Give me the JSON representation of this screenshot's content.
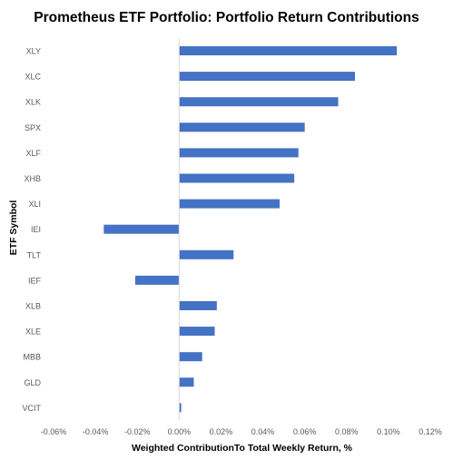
{
  "chart_data": {
    "type": "bar",
    "orientation": "horizontal",
    "title": "Prometheus ETF Portfolio: Portfolio Return Contributions",
    "xlabel": "Weighted ContributionTo Total Weekly Return, %",
    "ylabel": "ETF Symbol",
    "categories": [
      "XLY",
      "XLC",
      "XLK",
      "SPX",
      "XLF",
      "XHB",
      "XLI",
      "IEI",
      "TLT",
      "IEF",
      "XLB",
      "XLE",
      "MBB",
      "GLD",
      "VCIT"
    ],
    "values": [
      0.104,
      0.084,
      0.076,
      0.06,
      0.057,
      0.055,
      0.048,
      -0.036,
      0.026,
      -0.021,
      0.018,
      0.017,
      0.011,
      0.007,
      0.001
    ],
    "xlim": [
      -0.06,
      0.12
    ],
    "xticks": [
      "-0.06%",
      "-0.04%",
      "-0.02%",
      "0.00%",
      "0.02%",
      "0.04%",
      "0.06%",
      "0.08%",
      "0.10%",
      "0.12%"
    ],
    "xtick_values": [
      -0.06,
      -0.04,
      -0.02,
      0,
      0.02,
      0.04,
      0.06,
      0.08,
      0.1,
      0.12
    ],
    "grid": false,
    "legend": "none",
    "bar_color": "#4472C4",
    "axis_color": "#d9d9d9",
    "text_color": "#595959"
  }
}
